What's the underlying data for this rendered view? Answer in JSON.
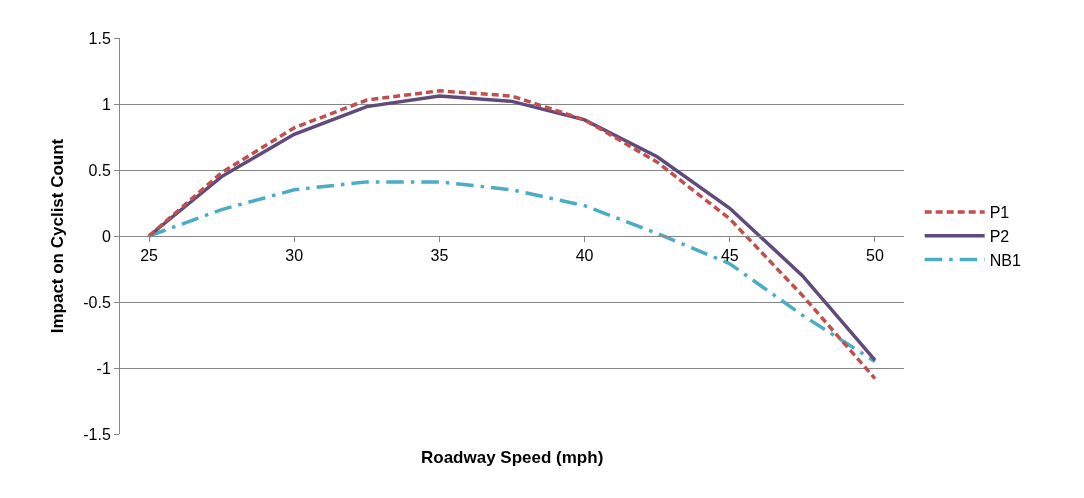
{
  "chart_data": {
    "type": "line",
    "xlabel": "Roadway Speed (mph)",
    "ylabel": "Impact on Cyclist Count",
    "x": [
      25,
      27.5,
      30,
      32.5,
      35,
      37.5,
      40,
      42.5,
      45,
      47.5,
      50
    ],
    "series": [
      {
        "name": "P1",
        "color": "#c0504d",
        "line_style": "dashed",
        "values": [
          0,
          0.48,
          0.82,
          1.03,
          1.1,
          1.06,
          0.88,
          0.56,
          0.13,
          -0.45,
          -1.08
        ]
      },
      {
        "name": "P2",
        "color": "#604a7b",
        "line_style": "solid",
        "values": [
          0,
          0.45,
          0.77,
          0.98,
          1.06,
          1.02,
          0.88,
          0.6,
          0.21,
          -0.3,
          -0.94
        ]
      },
      {
        "name": "NB1",
        "color": "#4bacc6",
        "line_style": "dashdot",
        "values": [
          0,
          0.2,
          0.35,
          0.41,
          0.41,
          0.35,
          0.23,
          0.02,
          -0.21,
          -0.6,
          -0.95
        ]
      }
    ],
    "xlim": [
      24,
      51
    ],
    "xticks": [
      25,
      30,
      35,
      40,
      45,
      50
    ],
    "ylim": [
      -1.5,
      1.5
    ],
    "yticks": [
      -1.5,
      -1,
      -0.5,
      0,
      0.5,
      1,
      1.5
    ],
    "grid": "y",
    "legend": "right",
    "marker": "none"
  }
}
